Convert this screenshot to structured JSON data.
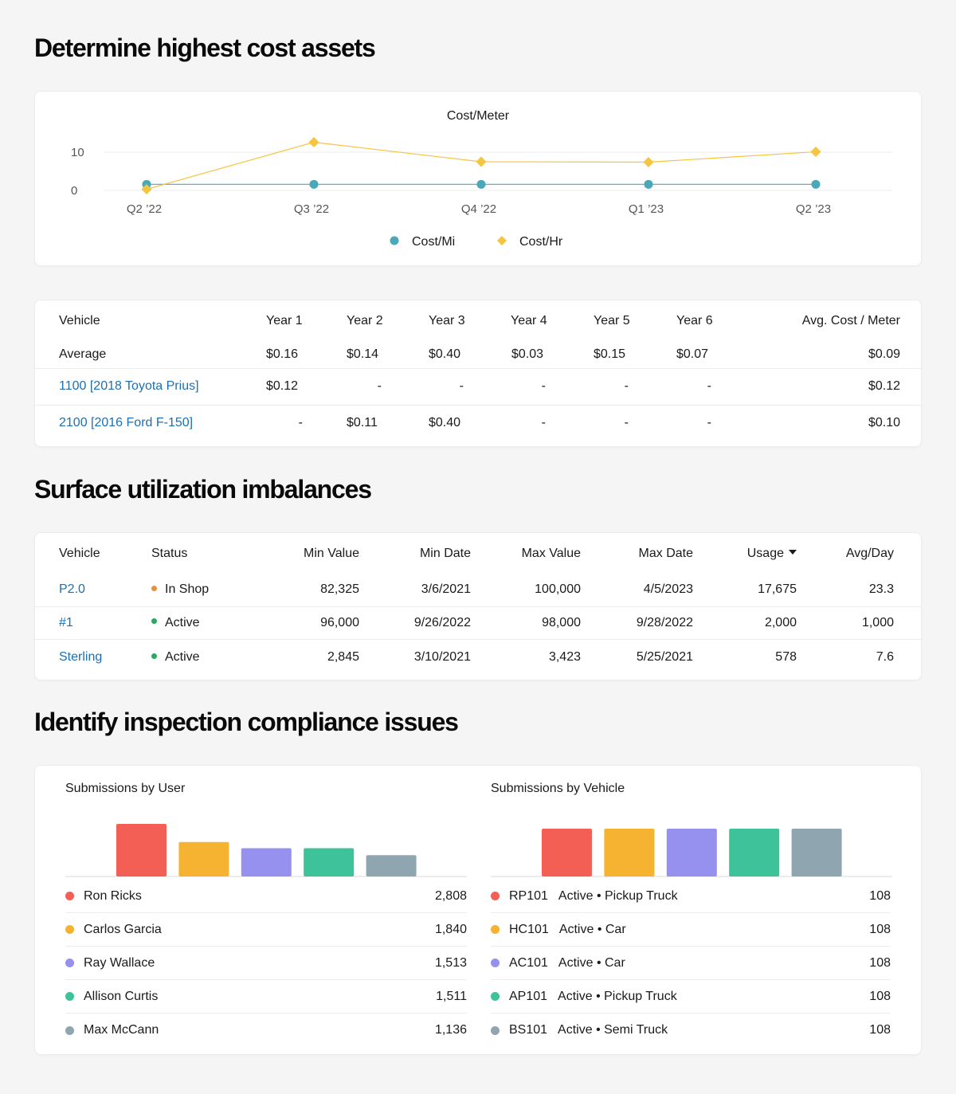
{
  "sections": {
    "cost_title": "Determine highest cost assets",
    "util_title": "Surface utilization imbalances",
    "insp_title": "Identify inspection compliance issues"
  },
  "cost_chart": {
    "title": "Cost/Meter",
    "legend": [
      {
        "label": "Cost/Mi",
        "color": "#4aa8b8",
        "shape": "circle"
      },
      {
        "label": "Cost/Hr",
        "color": "#f5c53f",
        "shape": "diamond"
      }
    ]
  },
  "chart_data": [
    {
      "type": "line",
      "title": "Cost/Meter",
      "categories": [
        "Q2 ’22",
        "Q3 ’22",
        "Q4 ’22",
        "Q1 ’23",
        "Q2 ’23"
      ],
      "yticks": [
        "10",
        "0"
      ],
      "ylim": [
        0,
        10
      ],
      "grid": true,
      "legend_position": "bottom",
      "series": [
        {
          "name": "Cost/Mi",
          "color": "#4aa8b8",
          "values": [
            1.6,
            1.6,
            1.6,
            1.6,
            1.6
          ]
        },
        {
          "name": "Cost/Hr",
          "color": "#f5c53f",
          "values": [
            0.3,
            12.6,
            7.5,
            7.4,
            10.1
          ]
        }
      ]
    },
    {
      "type": "bar",
      "title": "Submissions by User",
      "categories": [
        "Ron Ricks",
        "Carlos Garcia",
        "Ray Wallace",
        "Allison Curtis",
        "Max McCann"
      ],
      "values": [
        2808,
        1840,
        1513,
        1511,
        1136
      ],
      "colors": [
        "#f45f55",
        "#f5b331",
        "#9690ee",
        "#3dc29a",
        "#8fa6b0"
      ]
    },
    {
      "type": "bar",
      "title": "Submissions by Vehicle",
      "categories": [
        "RP101",
        "HC101",
        "AC101",
        "AP101",
        "BS101"
      ],
      "values": [
        108,
        108,
        108,
        108,
        108
      ],
      "colors": [
        "#f45f55",
        "#f5b331",
        "#9690ee",
        "#3dc29a",
        "#8fa6b0"
      ]
    }
  ],
  "cost_table": {
    "headers": [
      "Vehicle",
      "Year 1",
      "Year 2",
      "Year 3",
      "Year 4",
      "Year 5",
      "Year 6",
      "Avg. Cost / Meter"
    ],
    "rows": [
      {
        "vehicle": "Average",
        "link": false,
        "cells": [
          "$0.16",
          "$0.14",
          "$0.40",
          "$0.03",
          "$0.15",
          "$0.07",
          "$0.09"
        ]
      },
      {
        "vehicle": "1100 [2018 Toyota Prius]",
        "link": true,
        "cells": [
          "$0.12",
          "-",
          "-",
          "-",
          "-",
          "-",
          "$0.12"
        ]
      },
      {
        "vehicle": "2100 [2016 Ford F-150]",
        "link": true,
        "cells": [
          "-",
          "$0.11",
          "$0.40",
          "-",
          "-",
          "-",
          "$0.10"
        ]
      }
    ]
  },
  "util_table": {
    "headers": [
      "Vehicle",
      "Status",
      "Min Value",
      "Min Date",
      "Max Value",
      "Max Date",
      "Usage",
      "Avg/Day"
    ],
    "sort_column": "Usage",
    "rows": [
      {
        "vehicle": "P2.0",
        "status": "In Shop",
        "status_color": "#e8913a",
        "min_value": "82,325",
        "min_date": "3/6/2021",
        "max_value": "100,000",
        "max_date": "4/5/2023",
        "usage": "17,675",
        "avg": "23.3"
      },
      {
        "vehicle": "#1",
        "status": "Active",
        "status_color": "#2aa760",
        "min_value": "96,000",
        "min_date": "9/26/2022",
        "max_value": "98,000",
        "max_date": "9/28/2022",
        "usage": "2,000",
        "avg": "1,000"
      },
      {
        "vehicle": "Sterling",
        "status": "Active",
        "status_color": "#2aa760",
        "min_value": "2,845",
        "min_date": "3/10/2021",
        "max_value": "3,423",
        "max_date": "5/25/2021",
        "usage": "578",
        "avg": "7.6"
      }
    ]
  },
  "submissions_user": {
    "title": "Submissions by User",
    "items": [
      {
        "name": "Ron Ricks",
        "value": "2,808",
        "color": "#f45f55"
      },
      {
        "name": "Carlos Garcia",
        "value": "1,840",
        "color": "#f5b331"
      },
      {
        "name": "Ray Wallace",
        "value": "1,513",
        "color": "#9690ee"
      },
      {
        "name": "Allison Curtis",
        "value": "1,511",
        "color": "#3dc29a"
      },
      {
        "name": "Max McCann",
        "value": "1,136",
        "color": "#8fa6b0"
      }
    ]
  },
  "submissions_vehicle": {
    "title": "Submissions by Vehicle",
    "items": [
      {
        "id": "RP101",
        "desc": "Active • Pickup Truck",
        "value": "108",
        "color": "#f45f55"
      },
      {
        "id": "HC101",
        "desc": "Active • Car",
        "value": "108",
        "color": "#f5b331"
      },
      {
        "id": "AC101",
        "desc": "Active • Car",
        "value": "108",
        "color": "#9690ee"
      },
      {
        "id": "AP101",
        "desc": "Active • Pickup Truck",
        "value": "108",
        "color": "#3dc29a"
      },
      {
        "id": "BS101",
        "desc": "Active • Semi Truck",
        "value": "108",
        "color": "#8fa6b0"
      }
    ]
  }
}
